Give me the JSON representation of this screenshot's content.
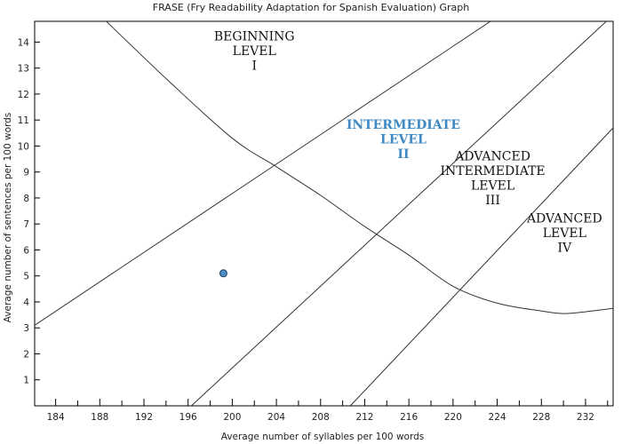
{
  "chart_data": {
    "type": "scatter",
    "title": "FRASE (Fry Readability Adaptation for Spanish Evaluation) Graph",
    "xlabel": "Average number of syllables per 100 words",
    "ylabel": "Average number of sentences per 100 words",
    "xlim": [
      182.1,
      234.5
    ],
    "ylim": [
      0,
      14.8
    ],
    "x_ticks": [
      184,
      188,
      192,
      196,
      200,
      204,
      208,
      212,
      216,
      220,
      224,
      228,
      232
    ],
    "x_minor_step": 2,
    "y_ticks": [
      1,
      2,
      3,
      4,
      5,
      6,
      7,
      8,
      9,
      10,
      11,
      12,
      13,
      14
    ],
    "grid": false,
    "points": [
      {
        "x": 199.2,
        "y": 5.1
      }
    ],
    "boundaries": [
      {
        "kind": "line",
        "points": [
          [
            182.1,
            3.1
          ],
          [
            224.1,
            15.0
          ]
        ]
      },
      {
        "kind": "line",
        "points": [
          [
            196.3,
            0
          ],
          [
            234.4,
            15.0
          ]
        ]
      },
      {
        "kind": "line",
        "points": [
          [
            210.7,
            0
          ],
          [
            234.5,
            10.7
          ]
        ]
      },
      {
        "kind": "curve",
        "points": [
          [
            188.1,
            15.0
          ],
          [
            194,
            12.6
          ],
          [
            200,
            10.3
          ],
          [
            204,
            9.2
          ],
          [
            208,
            8.1
          ],
          [
            212,
            6.9
          ],
          [
            216,
            5.8
          ],
          [
            220,
            4.6
          ],
          [
            224,
            3.95
          ],
          [
            228,
            3.65
          ],
          [
            230,
            3.55
          ],
          [
            232,
            3.62
          ],
          [
            234.5,
            3.75
          ]
        ]
      }
    ],
    "regions": [
      {
        "lines": [
          "BEGINNING",
          "LEVEL",
          "I"
        ],
        "x": 202.0,
        "y": 13.5,
        "highlight": false
      },
      {
        "lines": [
          "INTERMEDIATE",
          "LEVEL",
          "II"
        ],
        "x": 215.5,
        "y": 10.1,
        "highlight": true
      },
      {
        "lines": [
          "ADVANCED",
          "INTERMEDIATE",
          "LEVEL",
          "III"
        ],
        "x": 223.6,
        "y": 8.6,
        "highlight": false
      },
      {
        "lines": [
          "ADVANCED",
          "LEVEL",
          "IV"
        ],
        "x": 230.1,
        "y": 6.5,
        "highlight": false
      }
    ]
  }
}
